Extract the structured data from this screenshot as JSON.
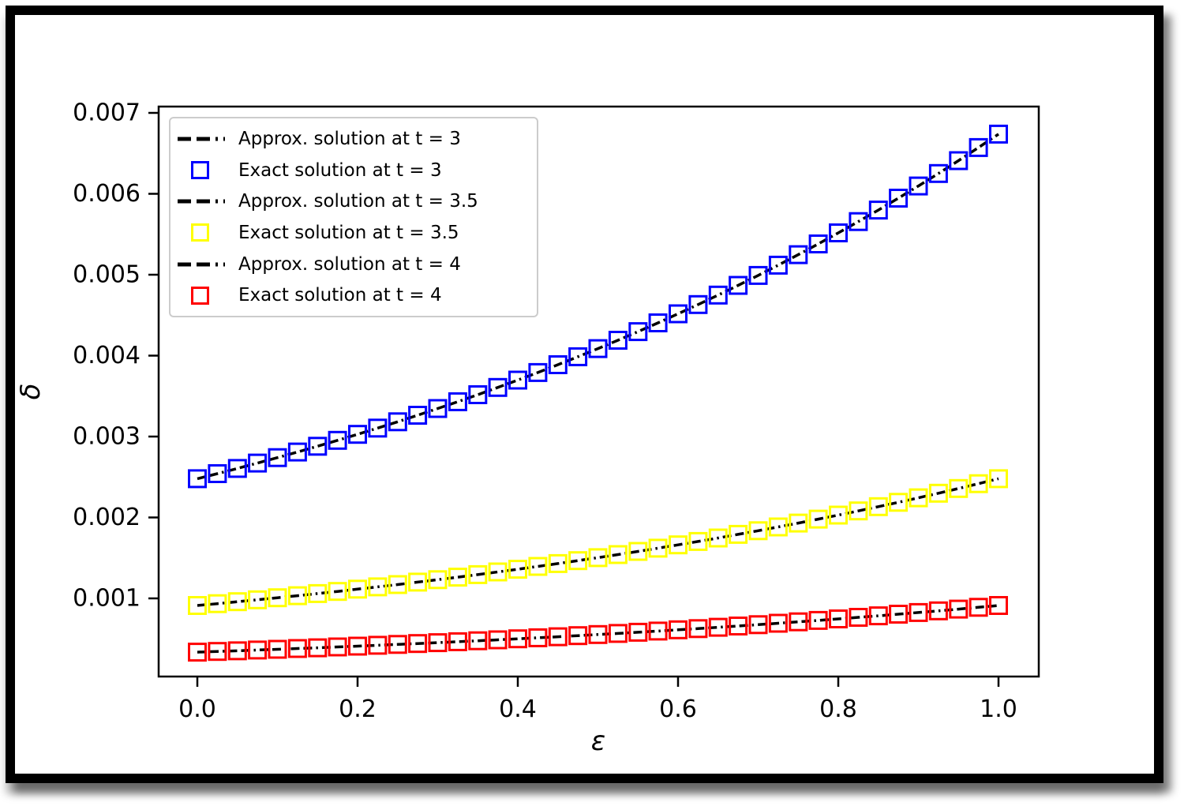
{
  "figure": {
    "frame_color": "#000000",
    "background": "#ffffff",
    "shadow": "gray drop shadow right and bottom"
  },
  "chart_data": {
    "type": "line",
    "title": "",
    "xlabel": "ε",
    "ylabel": "δ",
    "xlim": [
      -0.05,
      1.05
    ],
    "ylim": [
      3.37e-05,
      0.00708
    ],
    "grid": false,
    "legend_position": "upper left",
    "x_ticks": [
      0.0,
      0.2,
      0.4,
      0.6,
      0.8,
      1.0
    ],
    "x_tick_labels": [
      "0.0",
      "0.2",
      "0.4",
      "0.6",
      "0.8",
      "1.0"
    ],
    "y_ticks": [
      0.001,
      0.002,
      0.003,
      0.004,
      0.005,
      0.006,
      0.007
    ],
    "y_tick_labels": [
      "0.001",
      "0.002",
      "0.003",
      "0.004",
      "0.005",
      "0.006",
      "0.007"
    ],
    "x": [
      0.0,
      0.025,
      0.05,
      0.075,
      0.1,
      0.125,
      0.15,
      0.175,
      0.2,
      0.225,
      0.25,
      0.275,
      0.3,
      0.325,
      0.35,
      0.375,
      0.4,
      0.425,
      0.45,
      0.475,
      0.5,
      0.525,
      0.55,
      0.575,
      0.6,
      0.625,
      0.65,
      0.675,
      0.7,
      0.725,
      0.75,
      0.775,
      0.8,
      0.825,
      0.85,
      0.875,
      0.9,
      0.925,
      0.95,
      0.975,
      1.0
    ],
    "series": [
      {
        "label": "Approx. solution at t = 3",
        "style": "dashdot-line",
        "color": "#000000",
        "t": 3,
        "y": [
          0.0024788,
          0.0025415,
          0.0026059,
          0.0026718,
          0.0027394,
          0.0028088,
          0.0028799,
          0.0029528,
          0.0030276,
          0.0031042,
          0.0031828,
          0.0032634,
          0.003346,
          0.0034307,
          0.0035175,
          0.0036066,
          0.0036979,
          0.0037915,
          0.0038875,
          0.0039859,
          0.0040868,
          0.0041902,
          0.0042963,
          0.0044051,
          0.0045166,
          0.0046309,
          0.0047482,
          0.0048684,
          0.0049916,
          0.005118,
          0.0052475,
          0.0053804,
          0.0055166,
          0.0056562,
          0.0057994,
          0.0059462,
          0.0060968,
          0.0062511,
          0.0064093,
          0.0065716,
          0.0067379
        ]
      },
      {
        "label": "Exact solution at t = 3",
        "style": "square-marker",
        "color": "#0000ff",
        "t": 3,
        "y": [
          0.0024788,
          0.0025415,
          0.0026059,
          0.0026718,
          0.0027394,
          0.0028088,
          0.0028799,
          0.0029528,
          0.0030276,
          0.0031042,
          0.0031828,
          0.0032634,
          0.003346,
          0.0034307,
          0.0035175,
          0.0036066,
          0.0036979,
          0.0037915,
          0.0038875,
          0.0039859,
          0.0040868,
          0.0041902,
          0.0042963,
          0.0044051,
          0.0045166,
          0.0046309,
          0.0047482,
          0.0048684,
          0.0049916,
          0.005118,
          0.0052475,
          0.0053804,
          0.0055166,
          0.0056562,
          0.0057994,
          0.0059462,
          0.0060968,
          0.0062511,
          0.0064093,
          0.0065716,
          0.0067379
        ]
      },
      {
        "label": "Approx. solution at t = 3.5",
        "style": "dashdot-line",
        "color": "#000000",
        "t": 3.5,
        "y": [
          0.00091188,
          0.00093497,
          0.00095864,
          0.00098291,
          0.0010078,
          0.0010333,
          0.0010595,
          0.0010863,
          0.0011138,
          0.001142,
          0.0011709,
          0.0012005,
          0.0012309,
          0.0012621,
          0.001294,
          0.0013268,
          0.0013604,
          0.0013948,
          0.0014301,
          0.0014663,
          0.0015034,
          0.0015415,
          0.0015805,
          0.0016205,
          0.0016616,
          0.0017036,
          0.0017467,
          0.001791,
          0.0018363,
          0.0018828,
          0.0019305,
          0.0019793,
          0.0020294,
          0.0020808,
          0.0021335,
          0.0021875,
          0.0022429,
          0.0022996,
          0.0023579,
          0.0024175,
          0.0024788
        ]
      },
      {
        "label": "Exact solution at t = 3.5",
        "style": "square-marker",
        "color": "#ffff00",
        "t": 3.5,
        "y": [
          0.00091188,
          0.00093497,
          0.00095864,
          0.00098291,
          0.0010078,
          0.0010333,
          0.0010595,
          0.0010863,
          0.0011138,
          0.001142,
          0.0011709,
          0.0012005,
          0.0012309,
          0.0012621,
          0.001294,
          0.0013268,
          0.0013604,
          0.0013948,
          0.0014301,
          0.0014663,
          0.0015034,
          0.0015415,
          0.0015805,
          0.0016205,
          0.0016616,
          0.0017036,
          0.0017467,
          0.001791,
          0.0018363,
          0.0018828,
          0.0019305,
          0.0019793,
          0.0020294,
          0.0020808,
          0.0021335,
          0.0021875,
          0.0022429,
          0.0022996,
          0.0023579,
          0.0024175,
          0.0024788
        ]
      },
      {
        "label": "Approx. solution at t = 4",
        "style": "dashdot-line",
        "color": "#000000",
        "t": 4,
        "y": [
          0.00033546,
          0.00034395,
          0.00035266,
          0.00036159,
          0.00037074,
          0.00038013,
          0.00038975,
          0.00039962,
          0.00040973,
          0.00042011,
          0.00043074,
          0.00044165,
          0.00045283,
          0.00046429,
          0.00047605,
          0.0004881,
          0.00050045,
          0.00051312,
          0.00052611,
          0.00053943,
          0.00055308,
          0.00056708,
          0.00058144,
          0.00059616,
          0.00061125,
          0.00062672,
          0.00064258,
          0.00065885,
          0.00067554,
          0.00069264,
          0.00071017,
          0.00072815,
          0.00074659,
          0.00076549,
          0.00078487,
          0.00080474,
          0.0008251,
          0.00084599,
          0.0008674,
          0.00088936,
          0.00091188
        ]
      },
      {
        "label": "Exact solution at t = 4",
        "style": "square-marker",
        "color": "#ff0000",
        "t": 4,
        "y": [
          0.00033546,
          0.00034395,
          0.00035266,
          0.00036159,
          0.00037074,
          0.00038013,
          0.00038975,
          0.00039962,
          0.00040973,
          0.00042011,
          0.00043074,
          0.00044165,
          0.00045283,
          0.00046429,
          0.00047605,
          0.0004881,
          0.00050045,
          0.00051312,
          0.00052611,
          0.00053943,
          0.00055308,
          0.00056708,
          0.00058144,
          0.00059616,
          0.00061125,
          0.00062672,
          0.00064258,
          0.00065885,
          0.00067554,
          0.00069264,
          0.00071017,
          0.00072815,
          0.00074659,
          0.00076549,
          0.00078487,
          0.00080474,
          0.0008251,
          0.00084599,
          0.0008674,
          0.00088936,
          0.00091188
        ]
      }
    ]
  }
}
